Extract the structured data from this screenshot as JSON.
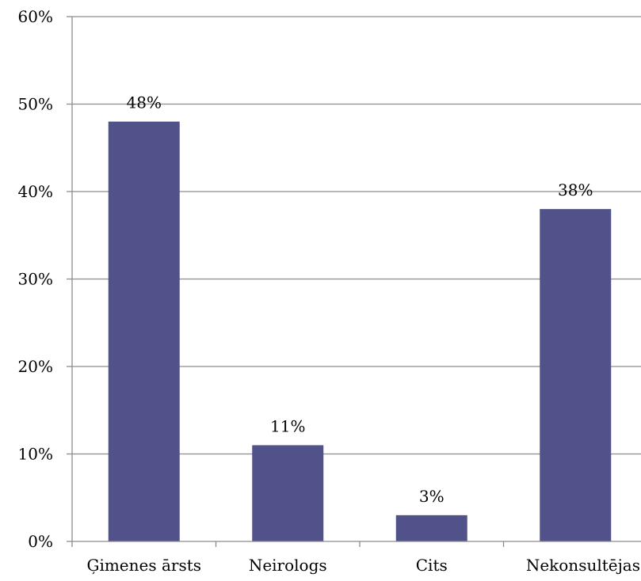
{
  "chart_data": {
    "type": "bar",
    "categories": [
      "Ģimenes ārsts",
      "Neirologs",
      "Cits",
      "Nekonsultējas"
    ],
    "values": [
      48,
      11,
      3,
      38
    ],
    "data_labels": [
      "48%",
      "11%",
      "3%",
      "38%"
    ],
    "ylim": [
      0,
      60
    ],
    "yticks": [
      0,
      10,
      20,
      30,
      40,
      50,
      60
    ],
    "ytick_labels": [
      "0%",
      "10%",
      "20%",
      "30%",
      "40%",
      "50%",
      "60%"
    ],
    "title": "",
    "xlabel": "",
    "ylabel": "",
    "grid": true,
    "legend": "none",
    "bar_color": "#52528A",
    "grid_color": "#8C8C8C"
  }
}
